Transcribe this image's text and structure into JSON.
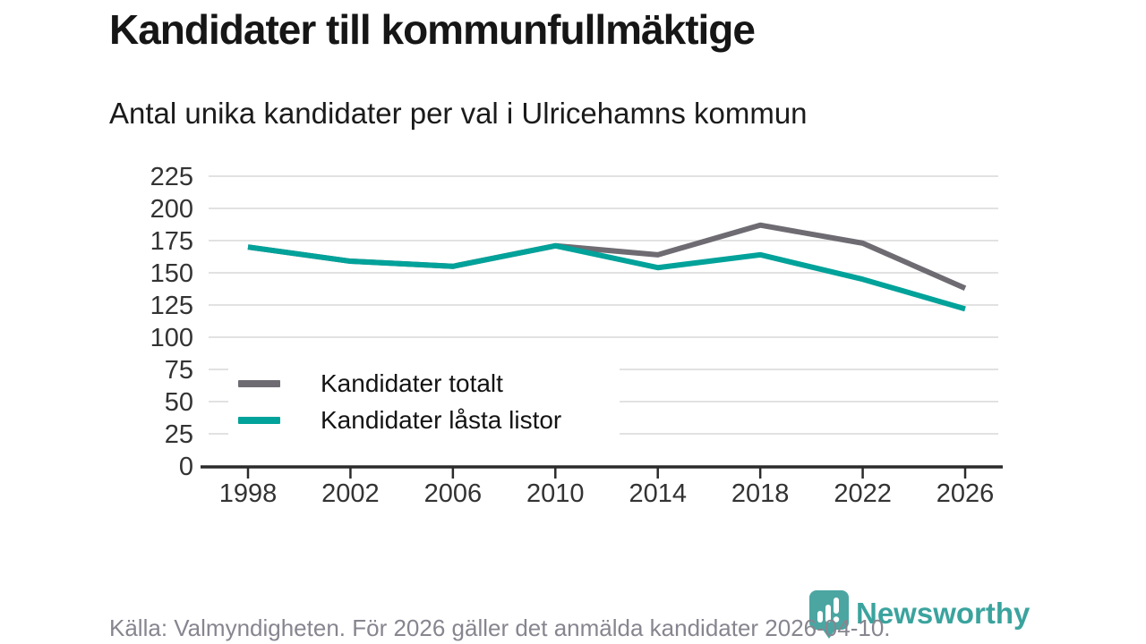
{
  "header": {},
  "chart_data": {
    "type": "line",
    "title": "Kandidater till kommunfullmäktige",
    "subtitle": "Antal unika kandidater per val i Ulricehamns kommun",
    "categories": [
      "1998",
      "2002",
      "2006",
      "2010",
      "2014",
      "2018",
      "2022",
      "2026"
    ],
    "series": [
      {
        "name": "Kandidater totalt",
        "color": "#6e6b72",
        "values": [
          170,
          159,
          155,
          171,
          164,
          187,
          173,
          138
        ]
      },
      {
        "name": "Kandidater låsta listor",
        "color": "#00a29a",
        "values": [
          170,
          159,
          155,
          171,
          154,
          164,
          145,
          122
        ]
      }
    ],
    "ylim": [
      0,
      225
    ],
    "y_ticks": [
      "0",
      "25",
      "50",
      "75",
      "100",
      "125",
      "150",
      "175",
      "200",
      "225"
    ],
    "xlabel": "",
    "ylabel": "",
    "grid": "horizontal",
    "legend_position": "inside-bottom-left",
    "colors": {
      "grid": "#e2e2e2",
      "axis": "#2b2b2b",
      "tick_text": "#333333"
    }
  },
  "footer": {
    "source": "Källa: Valmyndigheten. För 2026 gäller det anmälda kandidater 2026-04-10.",
    "brand": "Newsworthy",
    "brand_color": "#3ba39e",
    "bubble_color": "#4ba6a2"
  }
}
